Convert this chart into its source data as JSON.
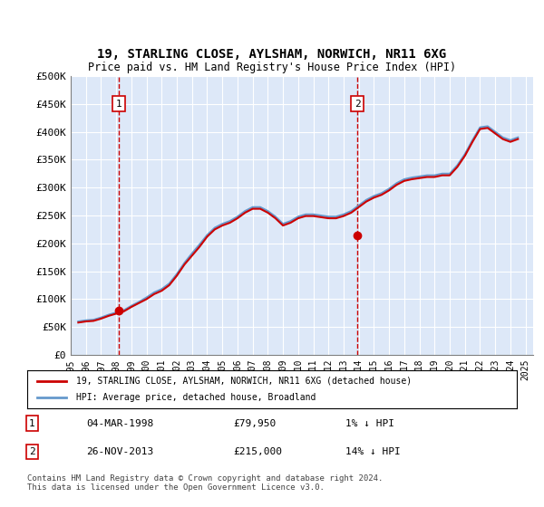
{
  "title": "19, STARLING CLOSE, AYLSHAM, NORWICH, NR11 6XG",
  "subtitle": "Price paid vs. HM Land Registry's House Price Index (HPI)",
  "ylabel": "",
  "background_color": "#dde8f8",
  "plot_bg_color": "#dde8f8",
  "ylim": [
    0,
    500000
  ],
  "yticks": [
    0,
    50000,
    100000,
    150000,
    200000,
    250000,
    300000,
    350000,
    400000,
    450000,
    500000
  ],
  "ytick_labels": [
    "£0",
    "£50K",
    "£100K",
    "£150K",
    "£200K",
    "£250K",
    "£300K",
    "£350K",
    "£400K",
    "£450K",
    "£500K"
  ],
  "sale1_date": 1998.17,
  "sale1_price": 79950,
  "sale2_date": 2013.9,
  "sale2_price": 215000,
  "legend_line1": "19, STARLING CLOSE, AYLSHAM, NORWICH, NR11 6XG (detached house)",
  "legend_line2": "HPI: Average price, detached house, Broadland",
  "note1_label": "1",
  "note1_date": "04-MAR-1998",
  "note1_price": "£79,950",
  "note1_hpi": "1% ↓ HPI",
  "note2_label": "2",
  "note2_date": "26-NOV-2013",
  "note2_price": "£215,000",
  "note2_hpi": "14% ↓ HPI",
  "footer": "Contains HM Land Registry data © Crown copyright and database right 2024.\nThis data is licensed under the Open Government Licence v3.0.",
  "hpi_color": "#6699cc",
  "price_color": "#cc0000",
  "marker_color": "#cc0000",
  "vline_color": "#cc0000",
  "hpi_data": {
    "years": [
      1995.5,
      1996.0,
      1996.5,
      1997.0,
      1997.5,
      1998.0,
      1998.5,
      1999.0,
      1999.5,
      2000.0,
      2000.5,
      2001.0,
      2001.5,
      2002.0,
      2002.5,
      2003.0,
      2003.5,
      2004.0,
      2004.5,
      2005.0,
      2005.5,
      2006.0,
      2006.5,
      2007.0,
      2007.5,
      2008.0,
      2008.5,
      2009.0,
      2009.5,
      2010.0,
      2010.5,
      2011.0,
      2011.5,
      2012.0,
      2012.5,
      2013.0,
      2013.5,
      2014.0,
      2014.5,
      2015.0,
      2015.5,
      2016.0,
      2016.5,
      2017.0,
      2017.5,
      2018.0,
      2018.5,
      2019.0,
      2019.5,
      2020.0,
      2020.5,
      2021.0,
      2021.5,
      2022.0,
      2022.5,
      2023.0,
      2023.5,
      2024.0,
      2024.5
    ],
    "values": [
      60000,
      62000,
      63000,
      67000,
      72000,
      76000,
      80000,
      88000,
      95000,
      103000,
      112000,
      118000,
      128000,
      145000,
      165000,
      182000,
      198000,
      215000,
      228000,
      235000,
      240000,
      248000,
      258000,
      265000,
      265000,
      258000,
      248000,
      235000,
      240000,
      248000,
      252000,
      252000,
      250000,
      248000,
      248000,
      252000,
      258000,
      268000,
      278000,
      285000,
      290000,
      298000,
      308000,
      315000,
      318000,
      320000,
      322000,
      322000,
      325000,
      325000,
      340000,
      360000,
      385000,
      408000,
      410000,
      400000,
      390000,
      385000,
      390000
    ]
  },
  "price_data": {
    "years": [
      1995.5,
      1996.0,
      1996.5,
      1997.0,
      1997.5,
      1998.0,
      1998.5,
      1999.0,
      1999.5,
      2000.0,
      2000.5,
      2001.0,
      2001.5,
      2002.0,
      2002.5,
      2003.0,
      2003.5,
      2004.0,
      2004.5,
      2005.0,
      2005.5,
      2006.0,
      2006.5,
      2007.0,
      2007.5,
      2008.0,
      2008.5,
      2009.0,
      2009.5,
      2010.0,
      2010.5,
      2011.0,
      2011.5,
      2012.0,
      2012.5,
      2013.0,
      2013.5,
      2014.0,
      2014.5,
      2015.0,
      2015.5,
      2016.0,
      2016.5,
      2017.0,
      2017.5,
      2018.0,
      2018.5,
      2019.0,
      2019.5,
      2020.0,
      2020.5,
      2021.0,
      2021.5,
      2022.0,
      2022.5,
      2023.0,
      2023.5,
      2024.0,
      2024.5
    ],
    "values": [
      58000,
      60000,
      61000,
      65000,
      70000,
      74000,
      78000,
      86000,
      93000,
      100000,
      109000,
      115000,
      125000,
      142000,
      162000,
      178000,
      194000,
      212000,
      225000,
      232000,
      237000,
      245000,
      255000,
      262000,
      262000,
      255000,
      245000,
      232000,
      237000,
      245000,
      249000,
      249000,
      247000,
      245000,
      245000,
      249000,
      255000,
      265000,
      275000,
      282000,
      287000,
      295000,
      305000,
      312000,
      315000,
      317000,
      319000,
      319000,
      322000,
      322000,
      337000,
      357000,
      382000,
      405000,
      407000,
      397000,
      387000,
      382000,
      387000
    ]
  }
}
